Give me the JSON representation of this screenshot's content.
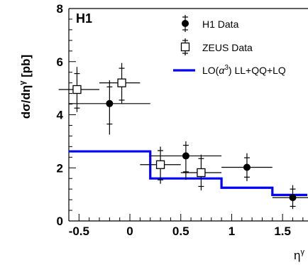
{
  "chart_data": {
    "type": "scatter",
    "panel_label": "H1",
    "xlabel": "η^γ",
    "ylabel": "dσ/dη^γ [pb]",
    "xlim": [
      -0.6,
      1.75
    ],
    "ylim": [
      0,
      8
    ],
    "x_ticks": [
      -0.5,
      0,
      0.5,
      1,
      1.5
    ],
    "x_tick_labels": [
      "-0.5",
      "0",
      "0.5",
      "1",
      "1.5"
    ],
    "y_ticks": [
      0,
      2,
      4,
      6,
      8
    ],
    "y_tick_labels": [
      "0",
      "2",
      "4",
      "6",
      "8"
    ],
    "legend_position": "top-right",
    "series": [
      {
        "name": "H1 Data",
        "marker": "filled-circle",
        "color": "#000000",
        "points": [
          {
            "x": -0.2,
            "y": 4.42,
            "xlo": -0.6,
            "xhi": 0.2,
            "ylo": 3.25,
            "yhi": 5.3,
            "ylo_inner": 3.65,
            "yhi_inner": 5.05
          },
          {
            "x": 0.55,
            "y": 2.45,
            "xlo": 0.2,
            "xhi": 0.9,
            "ylo": 1.55,
            "yhi": 3.0,
            "ylo_inner": 1.85,
            "yhi_inner": 2.85
          },
          {
            "x": 1.15,
            "y": 2.02,
            "xlo": 0.9,
            "xhi": 1.4,
            "ylo": 1.5,
            "yhi": 2.55,
            "ylo_inner": 1.65,
            "yhi_inner": 2.38
          },
          {
            "x": 1.6,
            "y": 0.88,
            "xlo": 1.4,
            "xhi": 1.75,
            "ylo": 0.45,
            "yhi": 1.35,
            "ylo_inner": 0.55,
            "yhi_inner": 1.2
          }
        ]
      },
      {
        "name": "ZEUS Data",
        "marker": "open-square",
        "color": "#000000",
        "points": [
          {
            "x": -0.52,
            "y": 4.95,
            "xlo": -0.7,
            "xhi": -0.3,
            "ylo": 4.1,
            "yhi": 5.8,
            "ylo_inner": 4.25,
            "yhi_inner": 5.55
          },
          {
            "x": -0.08,
            "y": 5.2,
            "xlo": -0.3,
            "xhi": 0.1,
            "ylo": 4.4,
            "yhi": 5.95,
            "ylo_inner": 4.55,
            "yhi_inner": 5.75
          },
          {
            "x": 0.3,
            "y": 2.12,
            "xlo": 0.1,
            "xhi": 0.5,
            "ylo": 1.4,
            "yhi": 2.8,
            "ylo_inner": 1.55,
            "yhi_inner": 2.65
          },
          {
            "x": 0.7,
            "y": 1.82,
            "xlo": 0.5,
            "xhi": 0.9,
            "ylo": 1.15,
            "yhi": 2.5,
            "ylo_inner": 1.3,
            "yhi_inner": 2.35
          }
        ]
      },
      {
        "name": "LO(α³) LL+QQ+LQ",
        "name_prefix": "LO(",
        "name_symbol": "α",
        "name_sup": "3",
        "name_suffix": ") LL+QQ+LQ",
        "type": "step",
        "color": "#0000ff",
        "bins": [
          {
            "xlo": -0.6,
            "xhi": 0.2,
            "y": 2.62
          },
          {
            "xlo": 0.2,
            "xhi": 0.9,
            "y": 1.6
          },
          {
            "xlo": 0.9,
            "xhi": 1.4,
            "y": 1.25
          },
          {
            "xlo": 1.4,
            "xhi": 1.75,
            "y": 0.98
          }
        ]
      }
    ]
  }
}
